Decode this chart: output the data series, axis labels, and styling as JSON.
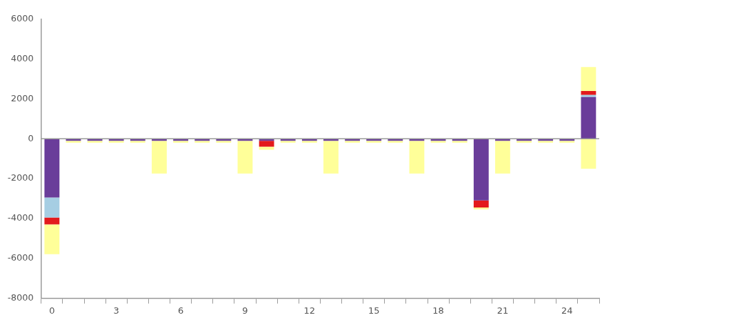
{
  "chart_data": {
    "type": "bar",
    "stacked": true,
    "categories": [
      "0",
      null,
      null,
      "3",
      null,
      null,
      "6",
      null,
      null,
      "9",
      null,
      null,
      "12",
      null,
      null,
      "15",
      null,
      null,
      "18",
      null,
      null,
      "21",
      null,
      null,
      "24",
      null
    ],
    "series": [
      {
        "color": "#6a3d9a",
        "values": [
          -2950,
          -100,
          -100,
          -100,
          -100,
          -100,
          -100,
          -100,
          -100,
          -100,
          -100,
          -100,
          -100,
          -100,
          -100,
          -100,
          -100,
          -100,
          -100,
          -100,
          -3100,
          -100,
          -100,
          -100,
          -100,
          2100
        ]
      },
      {
        "color": "#a6cee3",
        "values": [
          -1000,
          0,
          0,
          0,
          0,
          0,
          0,
          0,
          0,
          0,
          0,
          0,
          0,
          0,
          0,
          0,
          0,
          0,
          0,
          0,
          0,
          0,
          0,
          0,
          0,
          100
        ]
      },
      {
        "color": "#e31a1c",
        "values": [
          -350,
          0,
          0,
          0,
          0,
          0,
          0,
          0,
          0,
          0,
          -300,
          0,
          0,
          0,
          0,
          0,
          0,
          0,
          0,
          0,
          -350,
          0,
          0,
          0,
          0,
          200
        ]
      },
      {
        "color": "#ffff99",
        "values": [
          -1500,
          -100,
          -100,
          -100,
          -100,
          -1650,
          -100,
          -100,
          -100,
          -1650,
          -150,
          -100,
          -100,
          -1650,
          -100,
          -100,
          -100,
          -1650,
          -100,
          -100,
          -100,
          -1650,
          -100,
          -100,
          -100,
          1200
        ]
      },
      {
        "color": "#ffff99",
        "values": [
          0,
          0,
          0,
          0,
          0,
          0,
          0,
          0,
          0,
          0,
          0,
          0,
          0,
          0,
          0,
          0,
          0,
          0,
          0,
          0,
          0,
          0,
          0,
          0,
          0,
          -1500
        ]
      }
    ],
    "ylim": [
      -8000,
      6000
    ],
    "yticks": [
      -8000,
      -6000,
      -4000,
      -2000,
      0,
      2000,
      4000,
      6000
    ],
    "grid": false,
    "legend": false,
    "ref_lines": [
      {
        "axis": "y",
        "value": 0,
        "color": "#999999"
      }
    ]
  }
}
